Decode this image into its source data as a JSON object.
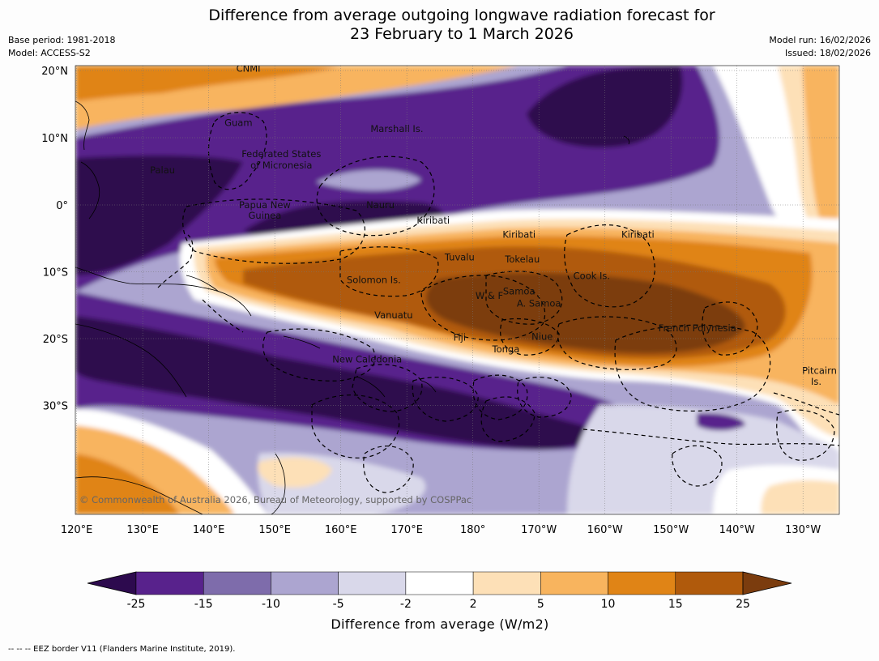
{
  "title": {
    "line1": "Difference from average outgoing longwave radiation forecast for",
    "line2": "23 February to 1 March 2026"
  },
  "meta_left": {
    "base_period": "Base period: 1981-2018",
    "model": "Model: ACCESS-S2"
  },
  "meta_right": {
    "model_run": "Model run: 16/02/2026",
    "issued": "Issued: 18/02/2026"
  },
  "map": {
    "lat_labels": [
      "20°N",
      "10°N",
      "0°",
      "10°S",
      "20°S",
      "30°S"
    ],
    "lat_values": [
      20,
      10,
      0,
      -10,
      -20,
      -30
    ],
    "lon_labels": [
      "120°E",
      "130°E",
      "140°E",
      "150°E",
      "160°E",
      "170°E",
      "180°",
      "170°W",
      "160°W",
      "150°W",
      "140°W",
      "130°W"
    ],
    "lon_values": [
      120,
      130,
      140,
      150,
      160,
      170,
      180,
      190,
      200,
      210,
      220,
      230
    ],
    "region_labels": [
      {
        "text": "CNMI",
        "lon": 146,
        "lat": 20.3
      },
      {
        "text": "Guam",
        "lon": 144.5,
        "lat": 12.2
      },
      {
        "text": "Marshall Is.",
        "lon": 168.5,
        "lat": 11.3
      },
      {
        "text": "Federated States",
        "lon": 151,
        "lat": 7.6
      },
      {
        "text": "of Micronesia",
        "lon": 151,
        "lat": 5.9
      },
      {
        "text": "Palau",
        "lon": 133,
        "lat": 5.2
      },
      {
        "text": "Papua New",
        "lon": 148.5,
        "lat": 0.0
      },
      {
        "text": "Guinea",
        "lon": 148.5,
        "lat": -1.6
      },
      {
        "text": "Nauru",
        "lon": 166,
        "lat": 0
      },
      {
        "text": "Kiribati",
        "lon": 174,
        "lat": -2.3
      },
      {
        "text": "Kiribati",
        "lon": 187,
        "lat": -4.4
      },
      {
        "text": "Kiribati",
        "lon": 205,
        "lat": -4.4
      },
      {
        "text": "Tuvalu",
        "lon": 178,
        "lat": -7.8
      },
      {
        "text": "Tokelau",
        "lon": 187.5,
        "lat": -8.1
      },
      {
        "text": "Cook Is.",
        "lon": 198,
        "lat": -10.6
      },
      {
        "text": "Solomon Is.",
        "lon": 165,
        "lat": -11.2
      },
      {
        "text": "Samoa",
        "lon": 187,
        "lat": -12.9
      },
      {
        "text": "W & F",
        "lon": 182.5,
        "lat": -13.6
      },
      {
        "text": "A. Samoa",
        "lon": 190,
        "lat": -14.7
      },
      {
        "text": "Vanuatu",
        "lon": 168,
        "lat": -16.5
      },
      {
        "text": "Fiji",
        "lon": 178,
        "lat": -19.8
      },
      {
        "text": "Niue",
        "lon": 190.5,
        "lat": -19.7
      },
      {
        "text": "Tonga",
        "lon": 185,
        "lat": -21.6
      },
      {
        "text": "French Polynesia",
        "lon": 214,
        "lat": -18.4
      },
      {
        "text": "New Caledonia",
        "lon": 164,
        "lat": -23.1
      },
      {
        "text": "Pitcairn",
        "lon": 232.5,
        "lat": -24.8
      },
      {
        "text": "Is.",
        "lon": 232,
        "lat": -26.4
      }
    ],
    "copyright": "© Commonwealth of Australia 2026, Bureau of Meteorology, supported by COSPPac"
  },
  "colorbar": {
    "title": "Difference from average (W/m2)",
    "tick_labels": [
      "-25",
      "-15",
      "-10",
      "-5",
      "-2",
      "2",
      "5",
      "10",
      "15",
      "25"
    ],
    "bins": [
      {
        "range": "< -25",
        "color": "#2d0a4e"
      },
      {
        "range": "-25 to -15",
        "color": "#58228c"
      },
      {
        "range": "-15 to -10",
        "color": "#7e6cab"
      },
      {
        "range": "-10 to -5",
        "color": "#aca5d0"
      },
      {
        "range": "-5 to -2",
        "color": "#d9d8ea"
      },
      {
        "range": "-2 to 2",
        "color": "#ffffff"
      },
      {
        "range": "2 to 5",
        "color": "#fde0b7"
      },
      {
        "range": "5 to 10",
        "color": "#f8b45e"
      },
      {
        "range": "10 to 15",
        "color": "#e08416"
      },
      {
        "range": "15 to 25",
        "color": "#b05a0c"
      },
      {
        "range": "> 25",
        "color": "#7b3c0e"
      }
    ]
  },
  "footer": "-- -- -- EEZ border V11 (Flanders Marine Institute, 2019)."
}
